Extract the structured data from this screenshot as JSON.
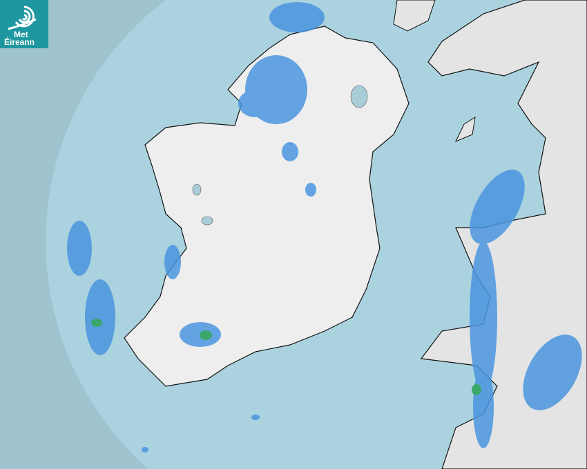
{
  "logo": {
    "line1": "Met",
    "line2": "Éireann",
    "color": "#1f97a0"
  },
  "map": {
    "type": "rainfall-radar",
    "colors": {
      "outside_coverage": "#9fc4cf",
      "sea": "#abd3df",
      "land": "#eeeeee",
      "rain_light": "#4a95e0",
      "rain_moderate": "#3aa86a"
    }
  }
}
